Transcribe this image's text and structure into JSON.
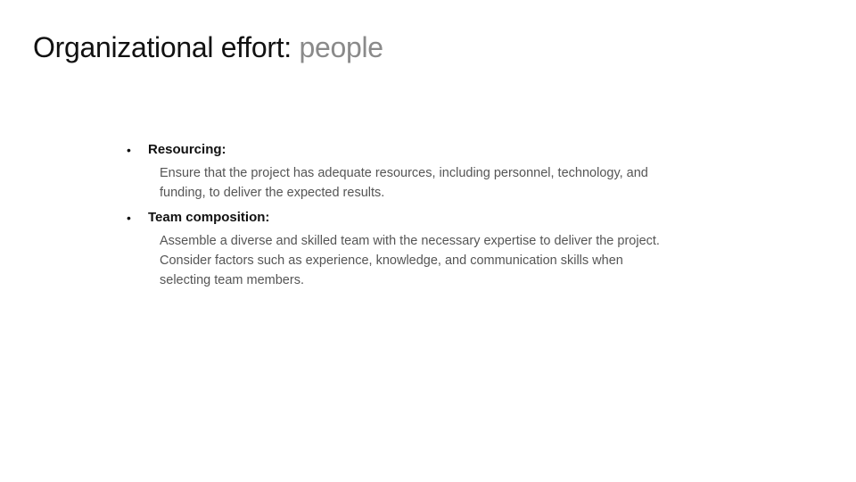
{
  "slide": {
    "title_main": "Organizational effort:",
    "title_accent": "people",
    "bullets": [
      {
        "heading": "Resourcing:",
        "description": "Ensure that the project has adequate resources, including personnel, technology, and funding, to deliver the expected results."
      },
      {
        "heading": "Team composition:",
        "description": "Assemble a diverse and skilled team with the necessary expertise to deliver the project. Consider factors such as experience, knowledge, and communication skills when selecting team members."
      }
    ],
    "bullet_glyph": "•"
  },
  "colors": {
    "title": "#111111",
    "title_accent": "#8a8a8a",
    "body_text": "#555555",
    "background": "#ffffff"
  }
}
